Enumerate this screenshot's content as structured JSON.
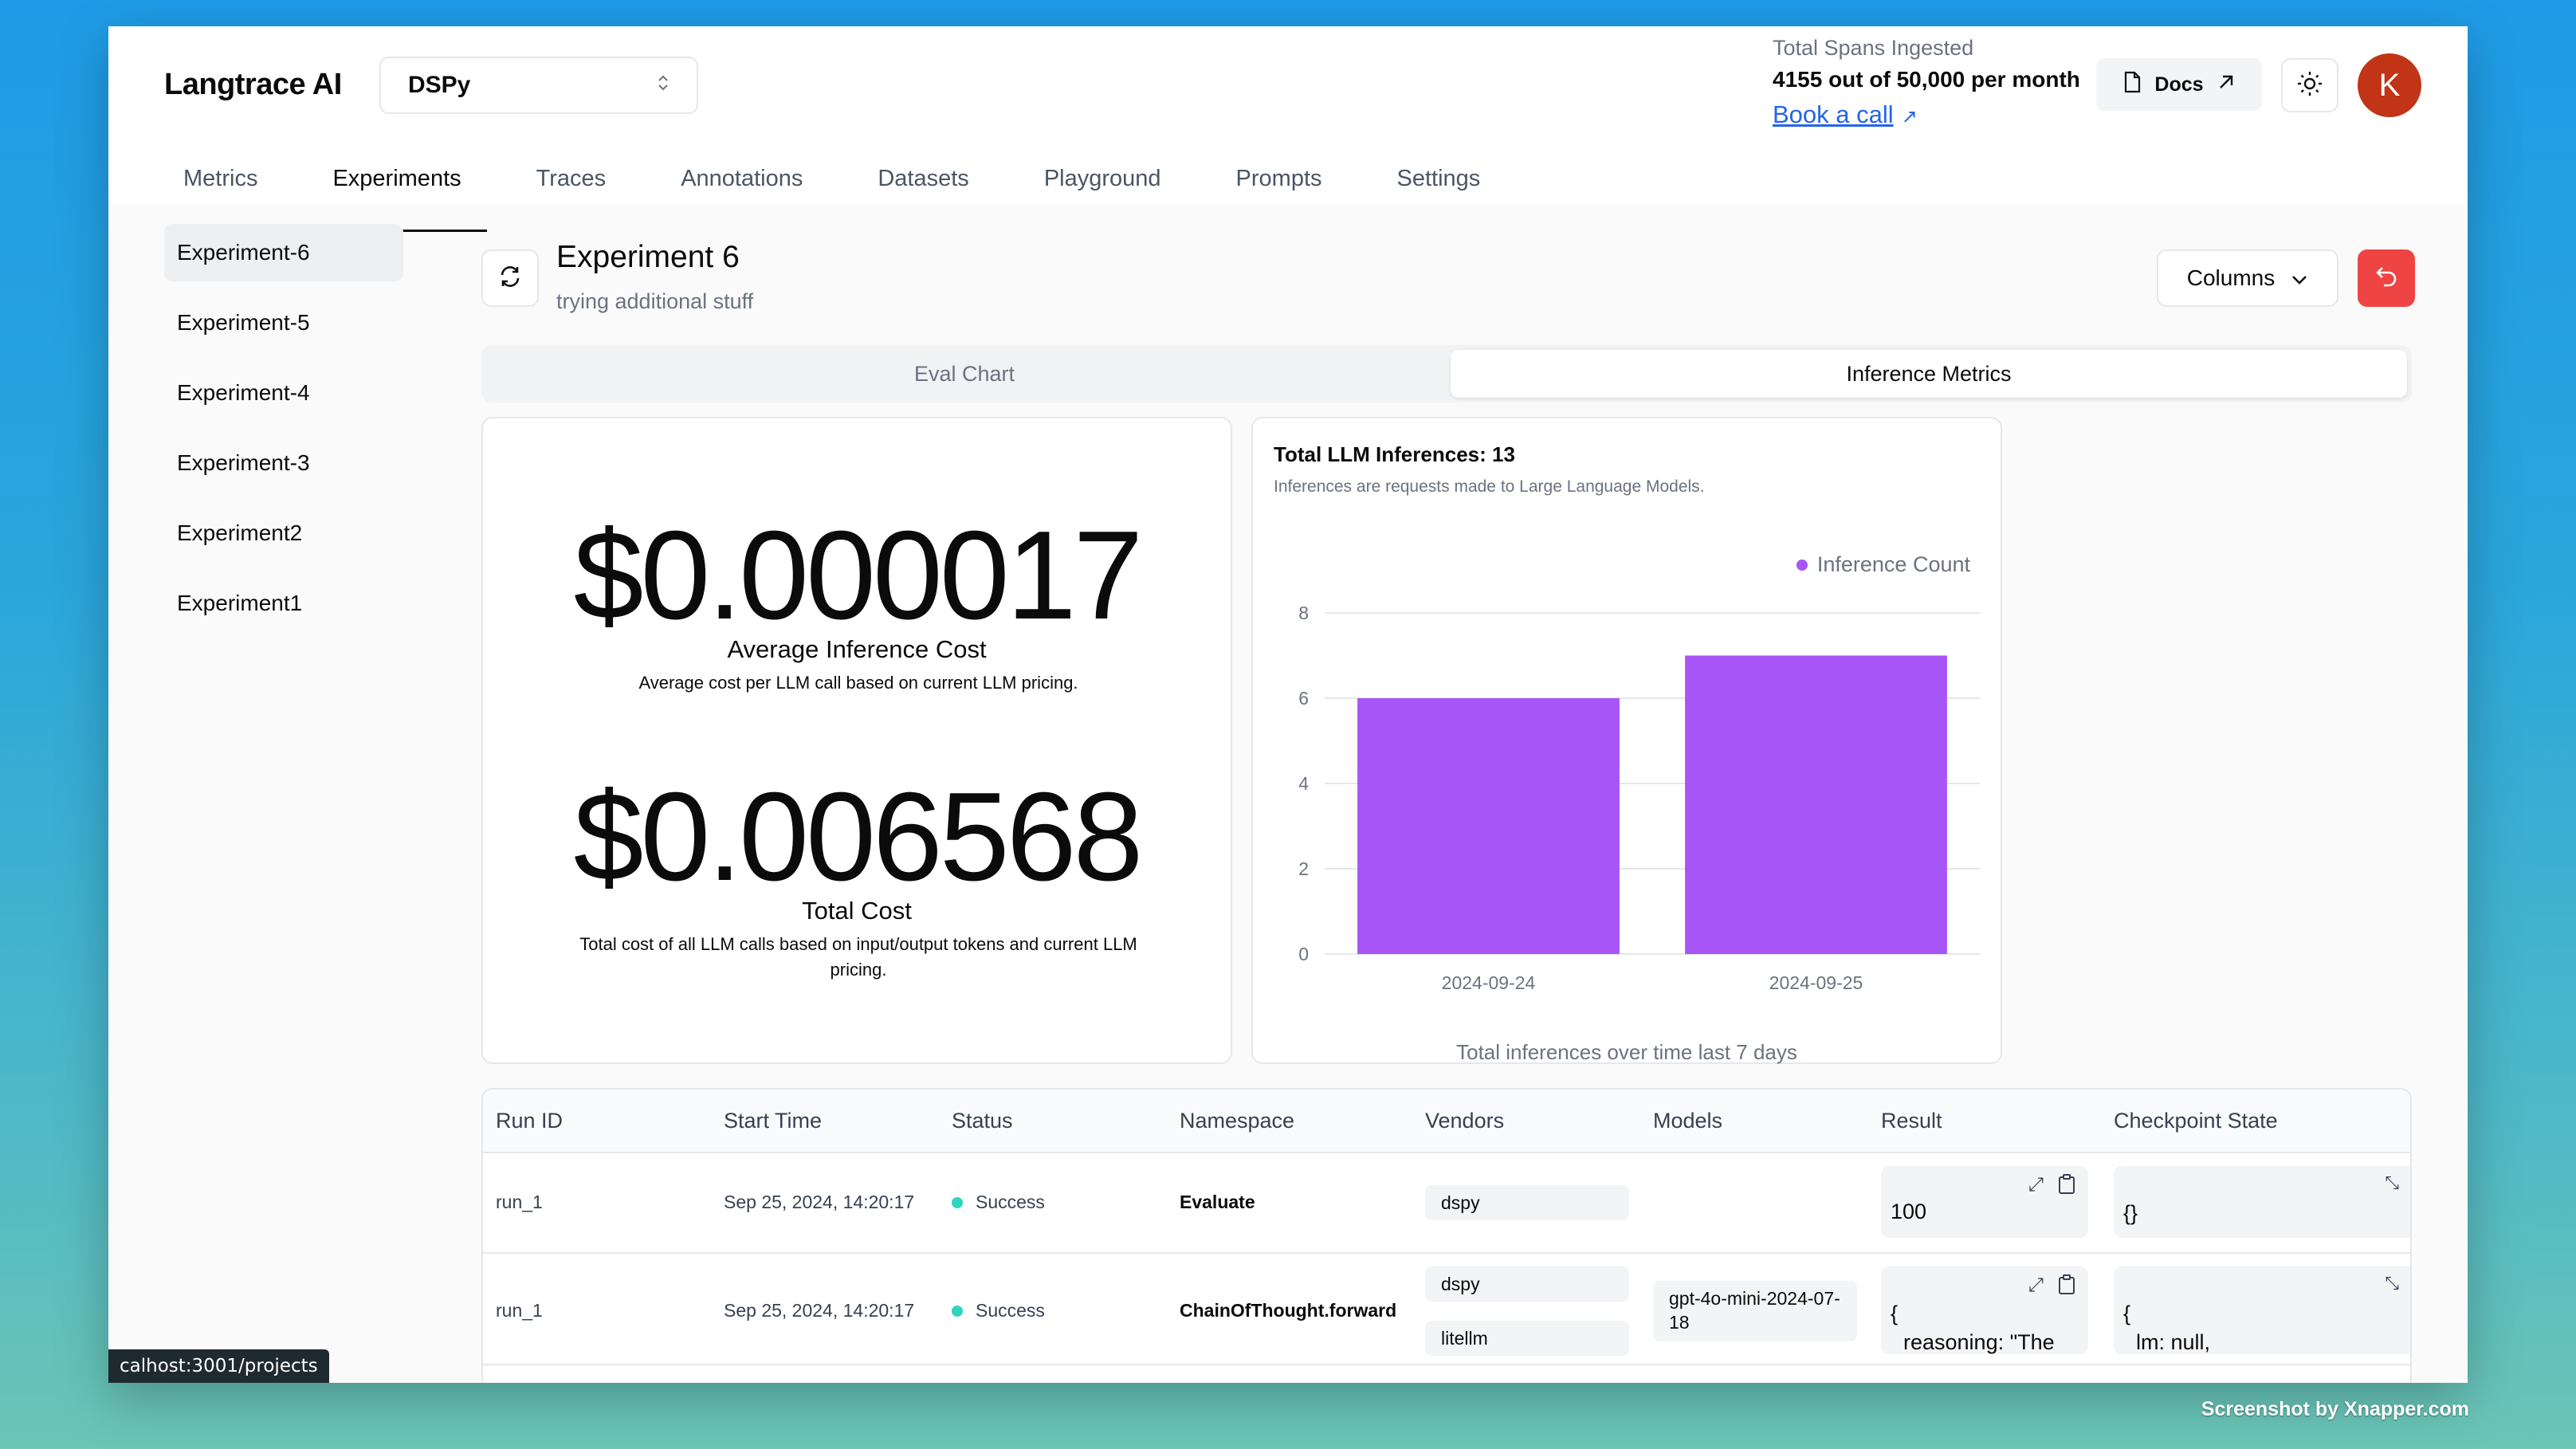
{
  "app": {
    "brand": "Langtrace AI",
    "project": "DSPy",
    "usage_label": "Total Spans Ingested",
    "usage_value": "4155 out of 50,000 per month",
    "book_call": "Book a call",
    "docs_label": "Docs",
    "avatar_initial": "K",
    "accent_color": "#a855f7"
  },
  "nav": {
    "tabs": [
      "Metrics",
      "Experiments",
      "Traces",
      "Annotations",
      "Datasets",
      "Playground",
      "Prompts",
      "Settings"
    ],
    "active": "Experiments"
  },
  "sidebar": {
    "items": [
      "Experiment-6",
      "Experiment-5",
      "Experiment-4",
      "Experiment-3",
      "Experiment2",
      "Experiment1"
    ],
    "active": "Experiment-6"
  },
  "experiment": {
    "title": "Experiment 6",
    "subtitle": "trying additional stuff",
    "columns_label": "Columns"
  },
  "view_tabs": {
    "options": [
      "Eval Chart",
      "Inference Metrics"
    ],
    "active": "Inference Metrics"
  },
  "cost": {
    "avg_value": "$0.000017",
    "avg_label": "Average Inference Cost",
    "avg_desc": "Average cost per LLM call based on current LLM pricing.",
    "total_value": "$0.006568",
    "total_label": "Total Cost",
    "total_desc": "Total cost of all LLM calls based on input/output tokens and current LLM pricing."
  },
  "chart_data": {
    "type": "bar",
    "title": "Total LLM Inferences: 13",
    "subtitle": "Inferences are requests made to Large Language Models.",
    "categories": [
      "2024-09-24",
      "2024-09-25"
    ],
    "series": [
      {
        "name": "Inference Count",
        "values": [
          6,
          7
        ],
        "color": "#a855f7"
      }
    ],
    "ylim": [
      0,
      8
    ],
    "yticks": [
      0,
      2,
      4,
      6,
      8
    ],
    "xlabel": "Total inferences over time last 7 days",
    "ylabel": "",
    "grid": true,
    "legend": "top-right"
  },
  "table": {
    "headers": [
      "Run ID",
      "Start Time",
      "Status",
      "Namespace",
      "Vendors",
      "Models",
      "Result",
      "Checkpoint State"
    ],
    "rows": [
      {
        "run_id": "run_1",
        "start": "Sep 25, 2024, 14:20:17",
        "status": "Success",
        "namespace": "Evaluate",
        "vendors": [
          "dspy"
        ],
        "models": [],
        "result": "100",
        "checkpoint": "{}"
      },
      {
        "run_id": "run_1",
        "start": "Sep 25, 2024, 14:20:17",
        "status": "Success",
        "namespace": "ChainOfThought.forward",
        "vendors": [
          "dspy",
          "litellm"
        ],
        "models": [
          "gpt-4o-mini-2024-07-18"
        ],
        "result_line1": "{",
        "result_line2": "reasoning: \"The",
        "checkpoint_line1": "{",
        "checkpoint_line2": "lm: null,"
      }
    ],
    "success_color": "#2dd4bf"
  },
  "status_bar": {
    "url": "calhost:3001/projects"
  },
  "watermark": "Screenshot by Xnapper.com"
}
